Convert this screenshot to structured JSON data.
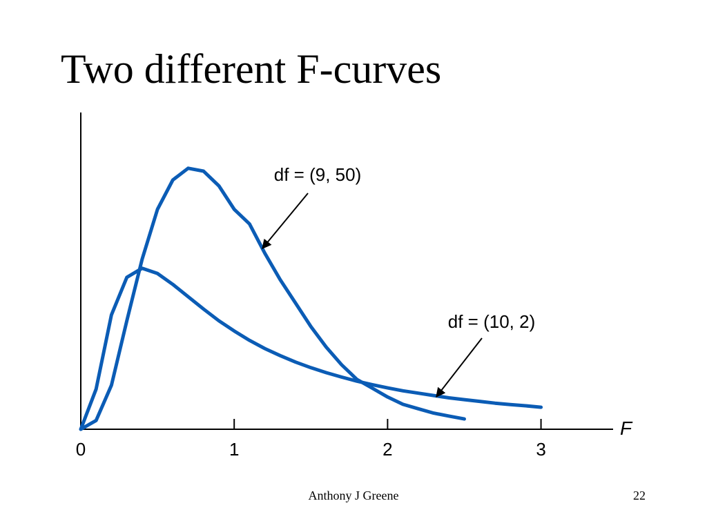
{
  "chart_data": {
    "type": "line",
    "title": "Two different F-curves",
    "x_label": "F",
    "x": [
      0,
      0.1,
      0.2,
      0.3,
      0.4,
      0.5,
      0.6,
      0.7,
      0.8,
      0.9,
      1.0,
      1.1,
      1.2,
      1.3,
      1.4,
      1.5,
      1.6,
      1.7,
      1.8,
      1.9,
      2.0,
      2.1,
      2.2,
      2.3,
      2.4,
      2.5,
      2.6,
      2.7,
      2.8,
      2.9,
      3.0
    ],
    "series": [
      {
        "name": "df = (9, 50)",
        "color": "#0b5cb5",
        "values": [
          0,
          0.03,
          0.15,
          0.37,
          0.58,
          0.75,
          0.85,
          0.89,
          0.88,
          0.83,
          0.75,
          0.7,
          0.6,
          0.51,
          0.43,
          0.35,
          0.28,
          0.22,
          0.17,
          0.14,
          0.11,
          0.085,
          0.07,
          0.055,
          0.045,
          0.035,
          null,
          null,
          null,
          null,
          null
        ]
      },
      {
        "name": "df = (10, 2)",
        "color": "#0b5cb5",
        "values": [
          0,
          0.137,
          0.39,
          0.518,
          0.549,
          0.531,
          0.494,
          0.452,
          0.41,
          0.37,
          0.335,
          0.303,
          0.275,
          0.251,
          0.229,
          0.21,
          0.193,
          0.178,
          0.164,
          0.152,
          0.141,
          0.131,
          0.123,
          0.115,
          0.107,
          0.101,
          0.095,
          0.089,
          0.084,
          0.08,
          0.075
        ]
      }
    ],
    "xlim": [
      0,
      3.47
    ],
    "ylim": [
      0,
      1.08
    ],
    "xticks": [
      0,
      1,
      2,
      3
    ],
    "grid": false
  },
  "footer": {
    "author": "Anthony J Greene",
    "page": "22"
  }
}
